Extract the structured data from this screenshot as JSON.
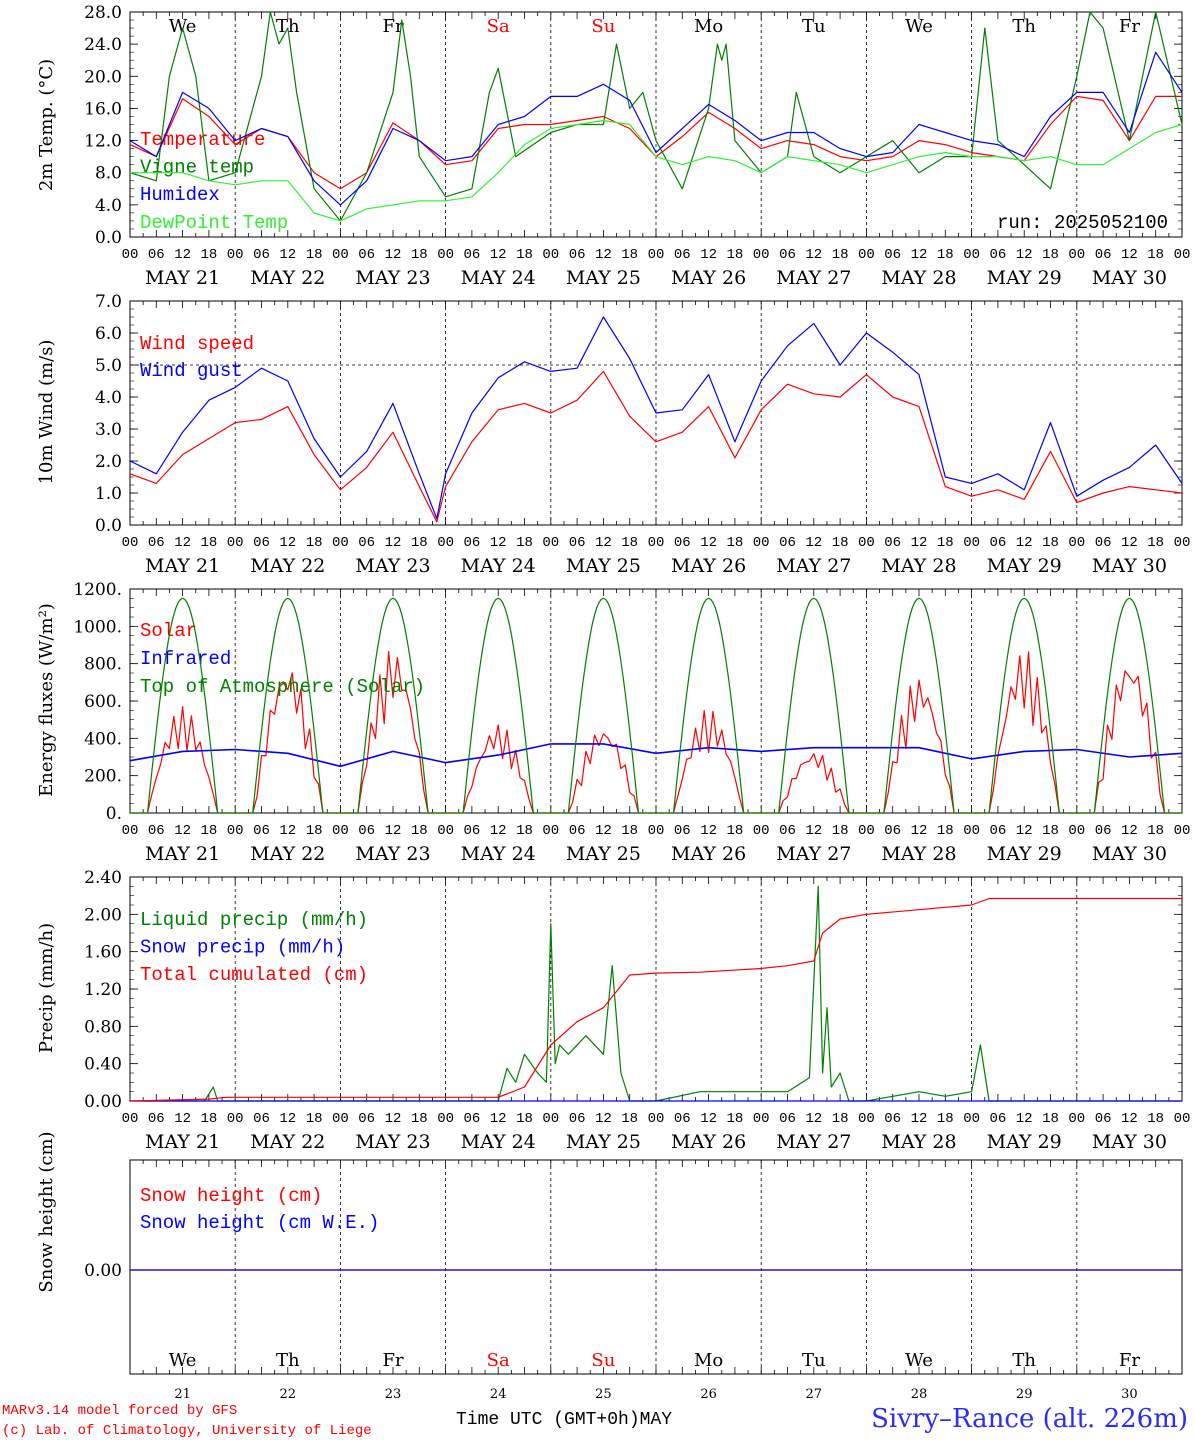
{
  "site_title": "Sivry–Rance (alt. 226m)",
  "credits": [
    "MARv3.14 model forced by GFS",
    "(c) Lab. of Climatology, University of Liege"
  ],
  "run_label": "run: 2025052100",
  "x_axis_title": "Time UTC (GMT+0h)",
  "month_label": "MAY",
  "days": [
    {
      "abbr": "We",
      "date": "MAY 21",
      "num": "21",
      "weekend": false
    },
    {
      "abbr": "Th",
      "date": "MAY 22",
      "num": "22",
      "weekend": false
    },
    {
      "abbr": "Fr",
      "date": "MAY 23",
      "num": "23",
      "weekend": false
    },
    {
      "abbr": "Sa",
      "date": "MAY 24",
      "num": "24",
      "weekend": true
    },
    {
      "abbr": "Su",
      "date": "MAY 25",
      "num": "25",
      "weekend": true
    },
    {
      "abbr": "Mo",
      "date": "MAY 26",
      "num": "26",
      "weekend": false
    },
    {
      "abbr": "Tu",
      "date": "MAY 27",
      "num": "27",
      "weekend": false
    },
    {
      "abbr": "We",
      "date": "MAY 28",
      "num": "28",
      "weekend": false
    },
    {
      "abbr": "Th",
      "date": "MAY 29",
      "num": "29",
      "weekend": false
    },
    {
      "abbr": "Fr",
      "date": "MAY 30",
      "num": "30",
      "weekend": false
    }
  ],
  "hour_labels": [
    "00",
    "06",
    "12",
    "18"
  ],
  "colors": {
    "red": "#ff0000",
    "blue": "#0000ff",
    "green": "#008000",
    "lime": "#33ee33",
    "grid": "#000000"
  },
  "chart_data": [
    {
      "id": "temp",
      "type": "line",
      "ylabel": "2m Temp. (°C)",
      "ylim": [
        0,
        28
      ],
      "yticks": [
        "0.0",
        "4.0",
        "8.0",
        "12.0",
        "16.0",
        "20.0",
        "24.0",
        "28.0"
      ],
      "x_unit": "hours since May 21 00 UTC",
      "series": [
        {
          "name": "Temperature",
          "color": "#ff0000",
          "x": [
            0,
            6,
            12,
            18,
            24,
            30,
            36,
            42,
            48,
            54,
            60,
            66,
            72,
            78,
            84,
            90,
            96,
            102,
            108,
            114,
            120,
            126,
            132,
            138,
            144,
            150,
            156,
            162,
            168,
            174,
            180,
            186,
            192,
            198,
            204,
            210,
            216,
            222,
            228,
            234,
            240
          ],
          "y": [
            11.5,
            10,
            17.2,
            15,
            11.5,
            13.5,
            12.5,
            8,
            6,
            8,
            14.2,
            12,
            9,
            9.5,
            13.5,
            14,
            14,
            14.5,
            15,
            13.5,
            10,
            12.5,
            15.5,
            13.5,
            11,
            12,
            11.5,
            10,
            9.5,
            10,
            12,
            11.5,
            10.5,
            10,
            9.5,
            14,
            17.5,
            17,
            12,
            17.5,
            17.5
          ]
        },
        {
          "name": "Vigne temp",
          "color": "#008000",
          "x": [
            0,
            6,
            9,
            12,
            15,
            18,
            24,
            30,
            32,
            34,
            36,
            38,
            42,
            48,
            54,
            60,
            62,
            64,
            66,
            72,
            78,
            82,
            84,
            88,
            96,
            102,
            108,
            111,
            114,
            117,
            120,
            126,
            132,
            134,
            135,
            136,
            138,
            144,
            150,
            152,
            156,
            162,
            168,
            174,
            180,
            186,
            192,
            195,
            198,
            204,
            210,
            216,
            219,
            222,
            228,
            234,
            240
          ],
          "y": [
            8,
            7,
            20,
            26,
            20,
            7,
            8,
            20,
            28,
            24,
            26,
            18,
            6,
            2,
            8,
            18,
            27,
            20,
            10,
            5,
            6,
            18,
            21,
            10,
            13,
            14,
            14,
            24,
            16,
            18,
            12,
            6,
            16,
            24,
            22,
            24,
            12,
            8,
            10,
            18,
            10,
            8,
            10,
            12,
            8,
            10,
            10,
            26,
            12,
            9,
            6,
            20,
            28,
            26,
            12,
            28,
            14
          ]
        },
        {
          "name": "Humidex",
          "color": "#0000ff",
          "x": [
            0,
            6,
            12,
            18,
            24,
            30,
            36,
            42,
            48,
            54,
            60,
            66,
            72,
            78,
            84,
            90,
            96,
            102,
            108,
            114,
            120,
            126,
            132,
            138,
            144,
            150,
            156,
            162,
            168,
            174,
            180,
            186,
            192,
            198,
            204,
            210,
            216,
            222,
            228,
            234,
            240
          ],
          "y": [
            12,
            10,
            18,
            16,
            12,
            13.5,
            12.5,
            7,
            4,
            7,
            13.5,
            12,
            9.5,
            10,
            14,
            15,
            17.5,
            17.5,
            19,
            17,
            10.5,
            13.5,
            16.5,
            14.5,
            12,
            13,
            13,
            11,
            10,
            10.5,
            14,
            13,
            12,
            11.5,
            10,
            15,
            18,
            18,
            13,
            23,
            18
          ]
        },
        {
          "name": "DewPoint Temp",
          "color": "#33ee33",
          "x": [
            0,
            6,
            12,
            18,
            24,
            30,
            36,
            42,
            48,
            54,
            60,
            66,
            72,
            78,
            84,
            90,
            96,
            102,
            108,
            114,
            120,
            126,
            132,
            138,
            144,
            150,
            156,
            162,
            168,
            174,
            180,
            186,
            192,
            198,
            204,
            210,
            216,
            222,
            228,
            234,
            240
          ],
          "y": [
            8,
            8,
            8,
            7,
            6.5,
            7,
            7,
            3,
            2,
            3.5,
            4,
            4.5,
            4.5,
            5,
            8,
            11.5,
            13.5,
            14,
            14.5,
            14,
            10,
            9,
            10,
            9.5,
            8,
            10,
            9.5,
            9,
            8,
            9,
            10,
            10.5,
            10,
            10,
            9.5,
            10,
            9,
            9,
            11,
            13,
            14
          ]
        }
      ]
    },
    {
      "id": "wind",
      "type": "line",
      "ylabel": "10m Wind (m/s)",
      "ylim": [
        0,
        7
      ],
      "yticks": [
        "0.0",
        "1.0",
        "2.0",
        "3.0",
        "4.0",
        "5.0",
        "6.0",
        "7.0"
      ],
      "ref_line": 5,
      "x_unit": "hours since May 21 00 UTC",
      "series": [
        {
          "name": "Wind speed",
          "color": "#ff0000",
          "x": [
            0,
            6,
            12,
            18,
            24,
            30,
            36,
            42,
            48,
            54,
            60,
            66,
            70,
            72,
            78,
            84,
            90,
            96,
            102,
            108,
            114,
            120,
            126,
            132,
            138,
            144,
            150,
            156,
            162,
            168,
            174,
            180,
            186,
            192,
            198,
            204,
            210,
            216,
            222,
            228,
            234,
            240
          ],
          "y": [
            1.6,
            1.3,
            2.2,
            2.7,
            3.2,
            3.3,
            3.7,
            2.2,
            1.1,
            1.8,
            2.9,
            1.2,
            0.1,
            1.2,
            2.6,
            3.6,
            3.8,
            3.5,
            3.9,
            4.8,
            3.4,
            2.6,
            2.9,
            3.7,
            2.1,
            3.6,
            4.4,
            4.1,
            4.0,
            4.7,
            4.0,
            3.7,
            1.2,
            0.9,
            1.1,
            0.8,
            2.3,
            0.7,
            1.0,
            1.2,
            1.1,
            1.0
          ]
        },
        {
          "name": "Wind gust",
          "color": "#0000ff",
          "x": [
            0,
            6,
            12,
            18,
            24,
            30,
            36,
            42,
            48,
            54,
            60,
            66,
            70,
            72,
            78,
            84,
            90,
            96,
            102,
            108,
            114,
            120,
            126,
            132,
            138,
            144,
            150,
            156,
            162,
            168,
            174,
            180,
            186,
            192,
            198,
            204,
            210,
            216,
            222,
            228,
            234,
            240
          ],
          "y": [
            2.0,
            1.6,
            2.9,
            3.9,
            4.3,
            4.9,
            4.5,
            2.7,
            1.5,
            2.3,
            3.8,
            1.6,
            0.2,
            1.6,
            3.5,
            4.6,
            5.1,
            4.8,
            4.9,
            6.5,
            5.2,
            3.5,
            3.6,
            4.7,
            2.6,
            4.5,
            5.6,
            6.3,
            5.0,
            6.0,
            5.4,
            4.7,
            1.5,
            1.3,
            1.6,
            1.1,
            3.2,
            0.9,
            1.4,
            1.8,
            2.5,
            1.3
          ]
        }
      ]
    },
    {
      "id": "energy",
      "type": "line",
      "ylabel": "Energy fluxes (W/m²)",
      "ylim": [
        0,
        1200
      ],
      "yticks": [
        "0.",
        "200.",
        "400.",
        "600.",
        "800.",
        "1000.",
        "1200."
      ],
      "x_unit": "hours since May 21 00 UTC",
      "series": [
        {
          "name": "Solar",
          "color": "#ff0000",
          "peaks": [
            570,
            810,
            890,
            480,
            470,
            560,
            340,
            740,
            880,
            850
          ]
        },
        {
          "name": "Infrared",
          "color": "#0000ff",
          "x": [
            0,
            12,
            24,
            36,
            48,
            60,
            72,
            84,
            96,
            108,
            120,
            132,
            144,
            156,
            168,
            180,
            192,
            204,
            216,
            228,
            240
          ],
          "y": [
            280,
            330,
            340,
            320,
            250,
            330,
            270,
            310,
            370,
            370,
            320,
            350,
            330,
            350,
            350,
            350,
            290,
            330,
            340,
            300,
            320
          ]
        },
        {
          "name": "Top of Atmosphere (Solar)",
          "color": "#008000",
          "peak": 1150
        }
      ]
    },
    {
      "id": "precip",
      "type": "line",
      "ylabel": "Precip (mm/h)",
      "ylim": [
        0,
        2.4
      ],
      "yticks": [
        "0.00",
        "0.40",
        "0.80",
        "1.20",
        "1.60",
        "2.00",
        "2.40"
      ],
      "x_unit": "hours since May 21 00 UTC",
      "series": [
        {
          "name": "Liquid precip (mm/h)",
          "color": "#008000",
          "x": [
            0,
            17,
            19,
            20,
            24,
            84,
            86,
            88,
            90,
            93,
            95,
            96,
            97,
            98,
            100,
            104,
            108,
            110,
            112,
            114,
            120,
            130,
            144,
            150,
            155,
            157,
            158,
            159,
            160,
            162,
            164,
            168,
            180,
            186,
            192,
            194,
            196,
            197,
            198,
            200,
            240
          ],
          "y": [
            0,
            0,
            0.15,
            0,
            0,
            0,
            0.35,
            0.2,
            0.5,
            0.3,
            0.2,
            1.9,
            0.4,
            0.6,
            0.5,
            0.7,
            0.5,
            1.45,
            0.3,
            0,
            0,
            0.1,
            0.1,
            0.1,
            0.25,
            2.3,
            0.3,
            1.0,
            0.15,
            0.3,
            0,
            0,
            0.1,
            0.05,
            0.1,
            0.6,
            0,
            0,
            0,
            0,
            0
          ]
        },
        {
          "name": "Snow precip (mm/h)",
          "color": "#0000ff",
          "x": [
            0,
            240
          ],
          "y": [
            0,
            0
          ]
        },
        {
          "name": "Total cumulated (cm)",
          "color": "#ff0000",
          "x": [
            0,
            18,
            22,
            84,
            90,
            96,
            102,
            108,
            114,
            120,
            130,
            144,
            150,
            156,
            158,
            162,
            168,
            180,
            192,
            196,
            240
          ],
          "y": [
            0,
            0.02,
            0.04,
            0.04,
            0.15,
            0.6,
            0.85,
            1.0,
            1.35,
            1.37,
            1.38,
            1.42,
            1.45,
            1.5,
            1.8,
            1.95,
            2.0,
            2.05,
            2.1,
            2.17,
            2.17
          ]
        }
      ]
    },
    {
      "id": "snow",
      "type": "line",
      "ylabel": "Snow height (cm)",
      "yticks": [
        "0.00"
      ],
      "x_unit": "hours since May 21 00 UTC",
      "series": [
        {
          "name": "Snow height (cm)",
          "color": "#ff0000",
          "x": [
            0,
            240
          ],
          "y": [
            0,
            0
          ]
        },
        {
          "name": "Snow height (cm W.E.)",
          "color": "#0000ff",
          "x": [
            0,
            240
          ],
          "y": [
            0,
            0
          ]
        }
      ]
    }
  ]
}
